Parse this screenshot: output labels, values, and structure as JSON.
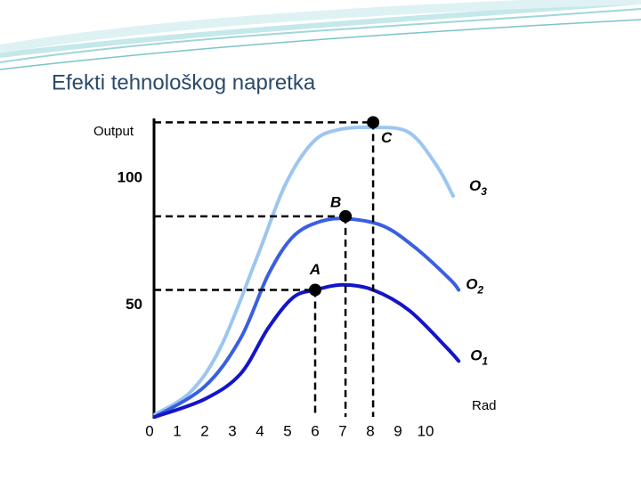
{
  "chart_data": {
    "type": "line",
    "title": "Efekti tehnološkog napretka",
    "y_label": "Output",
    "x_label": "Rad",
    "xlim": [
      0,
      11.5
    ],
    "ylim": [
      6,
      123
    ],
    "xticks": [
      0,
      1,
      2,
      3,
      4,
      5,
      6,
      7,
      8,
      9,
      10
    ],
    "yticks": [
      50,
      100
    ],
    "series": [
      {
        "label": [
          "O",
          "1"
        ],
        "color": "#1414c8",
        "x": [
          0.2,
          2.0,
          3.3,
          4.3,
          5.2,
          6.0,
          7.0,
          8.1,
          9.4,
          10.7,
          11.2
        ],
        "values": [
          6,
          13,
          23,
          41,
          53,
          56,
          58,
          56,
          48,
          34,
          28
        ]
      },
      {
        "label": [
          "O",
          "2"
        ],
        "color": "#3a5fe0",
        "x": [
          0.2,
          2.0,
          3.3,
          4.3,
          5.2,
          6.2,
          7.2,
          8.5,
          9.7,
          10.9,
          11.2
        ],
        "values": [
          6,
          18,
          37,
          62,
          77,
          83,
          84,
          81,
          72,
          60,
          56
        ]
      },
      {
        "label": [
          "O",
          "3"
        ],
        "color": "#9cc6f0",
        "x": [
          0.2,
          1.5,
          2.6,
          3.9,
          4.9,
          5.9,
          6.8,
          8.1,
          9.4,
          10.4,
          11.0
        ],
        "values": [
          7,
          16,
          34,
          69,
          97,
          114,
          119,
          120,
          118,
          105,
          93
        ]
      }
    ],
    "points": [
      {
        "name": "A",
        "x": 6,
        "y": 56
      },
      {
        "name": "B",
        "x": 7.1,
        "y": 85
      },
      {
        "name": "C",
        "x": 8.1,
        "y": 122
      }
    ]
  }
}
